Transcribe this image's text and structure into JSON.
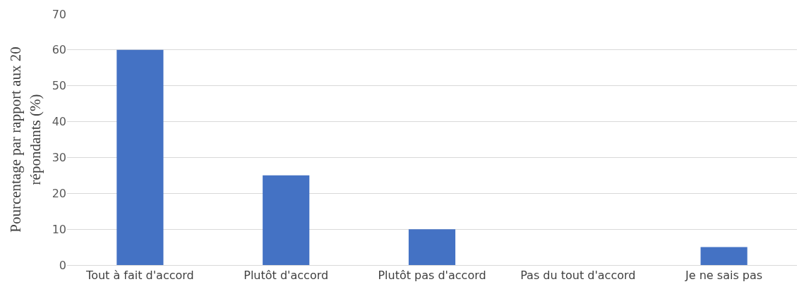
{
  "chart_data": {
    "type": "bar",
    "ylabel": "Pourcentage par rapport aux 20 répondants (%)",
    "categories": [
      "Tout à fait d'accord",
      "Plutôt d'accord",
      "Plutôt pas d'accord",
      "Pas du tout d'accord",
      "Je ne sais pas"
    ],
    "values": [
      60,
      25,
      10,
      0,
      5
    ],
    "color": "#4472c4",
    "ylim": [
      0,
      70
    ],
    "yticks": [
      0,
      10,
      20,
      30,
      40,
      50,
      60,
      70
    ],
    "grid": "y",
    "legend": false
  }
}
